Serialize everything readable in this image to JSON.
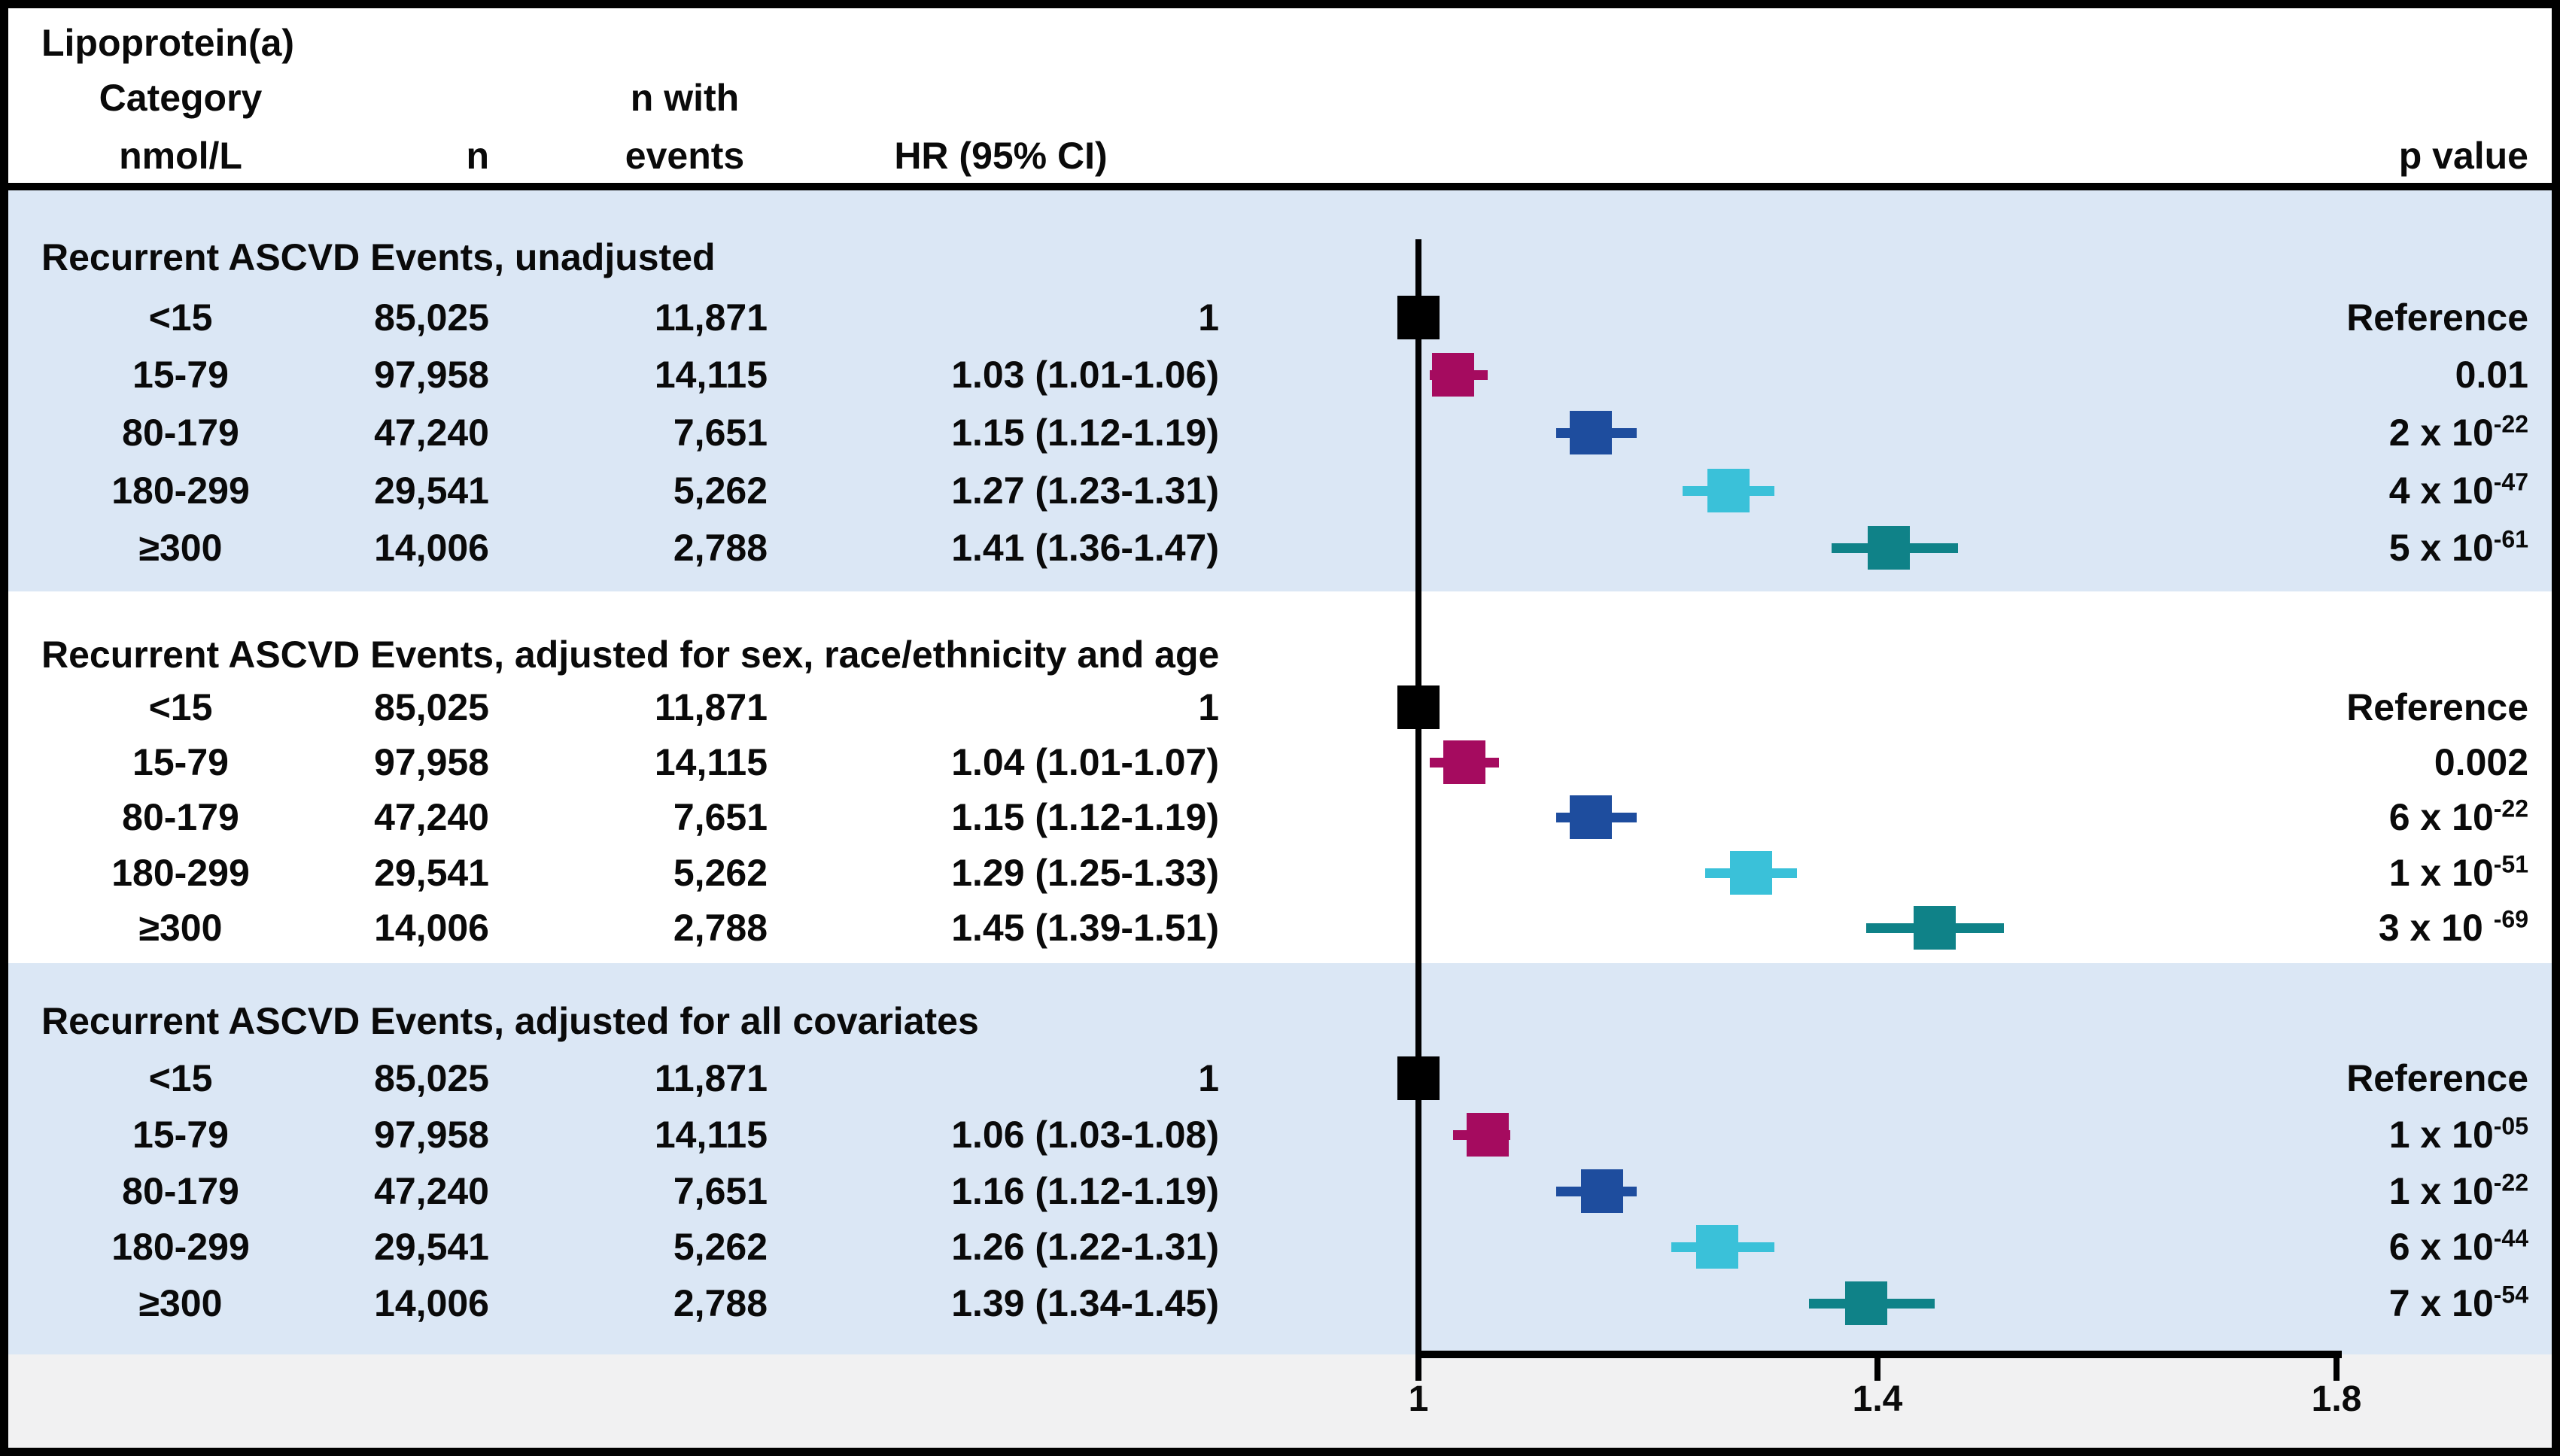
{
  "header": {
    "title_line1": "Lipoprotein(a)",
    "title_line2": "Category",
    "title_line3": "nmol/L",
    "n": "n",
    "events_line1": "n with",
    "events_line2": "events",
    "hr": "HR (95% CI)",
    "p": "p value"
  },
  "colors": {
    "shaded_band": "#dbe7f5",
    "footer_strip": "#f1f1f2",
    "reference_marker": "#000000",
    "cat_15_79": "#a50b5f",
    "cat_80_179": "#1e4d9e",
    "cat_180_299": "#3ac1d9",
    "cat_300": "#0f8288",
    "line": "#000000"
  },
  "chart_data": {
    "type": "forest",
    "xlabel": "HR (95% CI)",
    "xlim": [
      1.0,
      1.8
    ],
    "x_axis": {
      "reference": 1,
      "ticks": [
        {
          "v": 1.0,
          "label": "1"
        },
        {
          "v": 1.4,
          "label": "1.4"
        },
        {
          "v": 1.8,
          "label": "1.8"
        }
      ]
    },
    "sections": [
      {
        "title": "Recurrent ASCVD Events, unadjusted",
        "shaded": true,
        "rows": [
          {
            "category": "<15",
            "n": "85,025",
            "events": "11,871",
            "hr_text": "1",
            "hr": 1.0,
            "lo": 1.0,
            "hi": 1.0,
            "ref": true,
            "color": "#000000",
            "p_base": "Reference",
            "p_sup": ""
          },
          {
            "category": "15-79",
            "n": "97,958",
            "events": "14,115",
            "hr_text": "1.03 (1.01-1.06)",
            "hr": 1.03,
            "lo": 1.01,
            "hi": 1.06,
            "ref": false,
            "color": "#a50b5f",
            "p_base": "0.01",
            "p_sup": ""
          },
          {
            "category": "80-179",
            "n": "47,240",
            "events": "7,651",
            "hr_text": "1.15 (1.12-1.19)",
            "hr": 1.15,
            "lo": 1.12,
            "hi": 1.19,
            "ref": false,
            "color": "#1e4d9e",
            "p_base": "2 x 10",
            "p_sup": "-22"
          },
          {
            "category": "180-299",
            "n": "29,541",
            "events": "5,262",
            "hr_text": "1.27 (1.23-1.31)",
            "hr": 1.27,
            "lo": 1.23,
            "hi": 1.31,
            "ref": false,
            "color": "#3ac1d9",
            "p_base": "4 x 10",
            "p_sup": "-47"
          },
          {
            "category": "≥300",
            "n": "14,006",
            "events": "2,788",
            "hr_text": "1.41 (1.36-1.47)",
            "hr": 1.41,
            "lo": 1.36,
            "hi": 1.47,
            "ref": false,
            "color": "#0f8288",
            "p_base": "5 x 10",
            "p_sup": "-61"
          }
        ]
      },
      {
        "title": "Recurrent ASCVD Events, adjusted for sex, race/ethnicity and age",
        "shaded": false,
        "rows": [
          {
            "category": "<15",
            "n": "85,025",
            "events": "11,871",
            "hr_text": "1",
            "hr": 1.0,
            "lo": 1.0,
            "hi": 1.0,
            "ref": true,
            "color": "#000000",
            "p_base": "Reference",
            "p_sup": ""
          },
          {
            "category": "15-79",
            "n": "97,958",
            "events": "14,115",
            "hr_text": "1.04 (1.01-1.07)",
            "hr": 1.04,
            "lo": 1.01,
            "hi": 1.07,
            "ref": false,
            "color": "#a50b5f",
            "p_base": "0.002",
            "p_sup": ""
          },
          {
            "category": "80-179",
            "n": "47,240",
            "events": "7,651",
            "hr_text": "1.15 (1.12-1.19)",
            "hr": 1.15,
            "lo": 1.12,
            "hi": 1.19,
            "ref": false,
            "color": "#1e4d9e",
            "p_base": "6 x 10",
            "p_sup": "-22"
          },
          {
            "category": "180-299",
            "n": "29,541",
            "events": "5,262",
            "hr_text": "1.29 (1.25-1.33)",
            "hr": 1.29,
            "lo": 1.25,
            "hi": 1.33,
            "ref": false,
            "color": "#3ac1d9",
            "p_base": "1 x 10",
            "p_sup": "-51"
          },
          {
            "category": "≥300",
            "n": "14,006",
            "events": "2,788",
            "hr_text": "1.45 (1.39-1.51)",
            "hr": 1.45,
            "lo": 1.39,
            "hi": 1.51,
            "ref": false,
            "color": "#0f8288",
            "p_base": "3 x 10 ",
            "p_sup": "-69"
          }
        ]
      },
      {
        "title": "Recurrent ASCVD Events, adjusted for all covariates",
        "shaded": true,
        "rows": [
          {
            "category": "<15",
            "n": "85,025",
            "events": "11,871",
            "hr_text": "1",
            "hr": 1.0,
            "lo": 1.0,
            "hi": 1.0,
            "ref": true,
            "color": "#000000",
            "p_base": "Reference",
            "p_sup": ""
          },
          {
            "category": "15-79",
            "n": "97,958",
            "events": "14,115",
            "hr_text": "1.06 (1.03-1.08)",
            "hr": 1.06,
            "lo": 1.03,
            "hi": 1.08,
            "ref": false,
            "color": "#a50b5f",
            "p_base": "1 x 10",
            "p_sup": "-05"
          },
          {
            "category": "80-179",
            "n": "47,240",
            "events": "7,651",
            "hr_text": "1.16 (1.12-1.19)",
            "hr": 1.16,
            "lo": 1.12,
            "hi": 1.19,
            "ref": false,
            "color": "#1e4d9e",
            "p_base": "1 x 10",
            "p_sup": "-22"
          },
          {
            "category": "180-299",
            "n": "29,541",
            "events": "5,262",
            "hr_text": "1.26 (1.22-1.31)",
            "hr": 1.26,
            "lo": 1.22,
            "hi": 1.31,
            "ref": false,
            "color": "#3ac1d9",
            "p_base": "6 x 10",
            "p_sup": "-44"
          },
          {
            "category": "≥300",
            "n": "14,006",
            "events": "2,788",
            "hr_text": "1.39 (1.34-1.45)",
            "hr": 1.39,
            "lo": 1.34,
            "hi": 1.45,
            "ref": false,
            "color": "#0f8288",
            "p_base": "7 x 10",
            "p_sup": "-54"
          }
        ]
      }
    ]
  }
}
